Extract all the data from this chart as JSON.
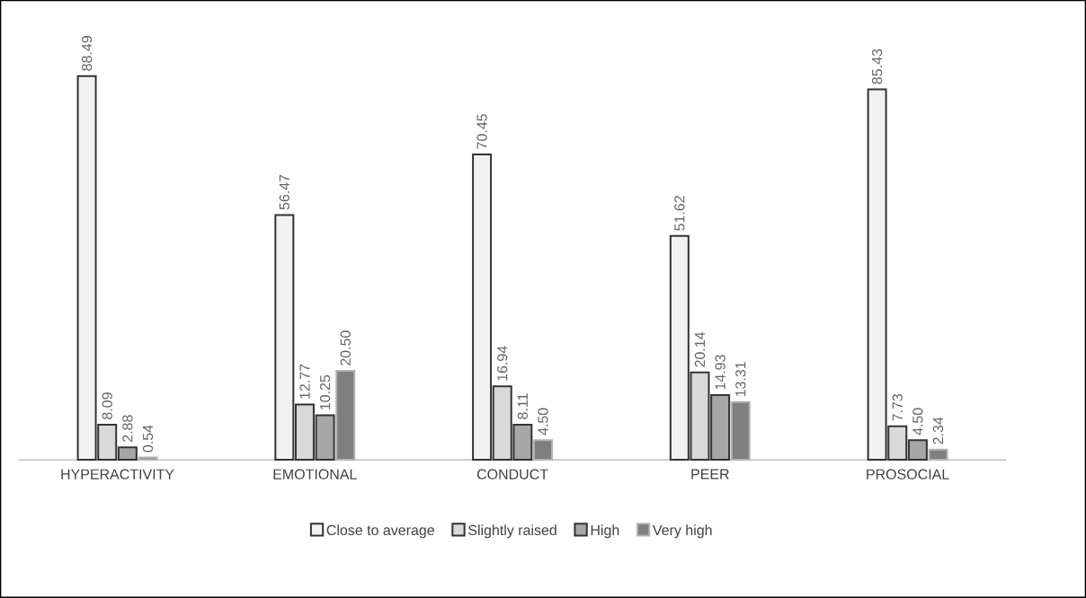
{
  "chart_data": {
    "type": "bar",
    "categories": [
      "HYPERACTIVITY",
      "EMOTIONAL",
      "CONDUCT",
      "PEER",
      "PROSOCIAL"
    ],
    "legend": "bottom",
    "series": [
      {
        "name": "Close to average",
        "color": "#f2f2f2",
        "values": [
          88.49,
          56.47,
          70.45,
          51.62,
          85.43
        ],
        "value_labels": [
          "88.49",
          "56.47",
          "70.45",
          "51.62",
          "85.43"
        ]
      },
      {
        "name": "Slightly raised",
        "color": "#d9d9d9",
        "values": [
          8.09,
          12.77,
          16.94,
          20.14,
          7.73
        ],
        "value_labels": [
          "8.09",
          "12.77",
          "16.94",
          "20.14",
          "7.73"
        ]
      },
      {
        "name": "High",
        "color": "#a6a6a6",
        "values": [
          2.88,
          10.25,
          8.11,
          14.93,
          4.5
        ],
        "value_labels": [
          "2.88",
          "10.25",
          "8.11",
          "14.93",
          "4.50"
        ]
      },
      {
        "name": "Very high",
        "color": "#7f7f7f",
        "values": [
          0.54,
          20.5,
          4.5,
          13.31,
          2.34
        ],
        "value_labels": [
          "0.54",
          "20.50",
          "4.50",
          "13.31",
          "2.34"
        ]
      }
    ]
  }
}
